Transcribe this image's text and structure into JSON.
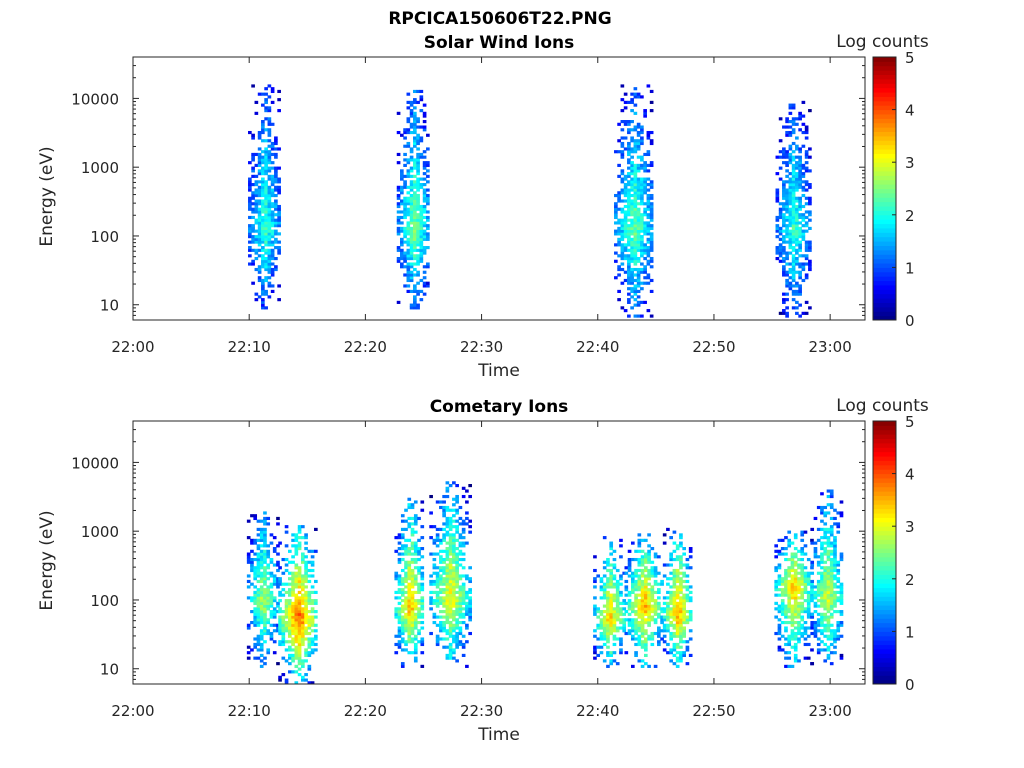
{
  "figure_title": "RPCICA150606T22.PNG",
  "chart_data": [
    {
      "type": "heatmap",
      "title": "Solar Wind Ions",
      "xlabel": "Time",
      "ylabel": "Energy (eV)",
      "x_ticks": [
        "22:00",
        "22:10",
        "22:20",
        "22:30",
        "22:40",
        "22:50",
        "23:00"
      ],
      "x_range_minutes": [
        0,
        63
      ],
      "y_scale": "log",
      "y_ticks": [
        "10",
        "100",
        "1000",
        "10000"
      ],
      "y_range": [
        6,
        40000
      ],
      "colorbar": {
        "label": "Log counts",
        "min": 0,
        "max": 5,
        "ticks": [
          "0",
          "1",
          "2",
          "3",
          "4",
          "5"
        ],
        "colormap": "jet"
      },
      "clusters": [
        {
          "t_start_min": 9.9,
          "t_end_min": 12.6,
          "e_low_eV": 8,
          "e_high_eV": 15000,
          "core_eV": 120,
          "peak_log_counts": 2.2
        },
        {
          "t_start_min": 22.7,
          "t_end_min": 25.5,
          "e_low_eV": 8,
          "e_high_eV": 13000,
          "core_eV": 120,
          "peak_log_counts": 2.5
        },
        {
          "t_start_min": 41.4,
          "t_end_min": 44.7,
          "e_low_eV": 6,
          "e_high_eV": 15000,
          "core_eV": 120,
          "peak_log_counts": 2.4
        },
        {
          "t_start_min": 55.3,
          "t_end_min": 58.2,
          "e_low_eV": 6,
          "e_high_eV": 9000,
          "core_eV": 120,
          "peak_log_counts": 2.2
        }
      ]
    },
    {
      "type": "heatmap",
      "title": "Cometary Ions",
      "xlabel": "Time",
      "ylabel": "Energy (eV)",
      "x_ticks": [
        "22:00",
        "22:10",
        "22:20",
        "22:30",
        "22:40",
        "22:50",
        "23:00"
      ],
      "x_range_minutes": [
        0,
        63
      ],
      "y_scale": "log",
      "y_ticks": [
        "10",
        "100",
        "1000",
        "10000"
      ],
      "y_range": [
        6,
        40000
      ],
      "colorbar": {
        "label": "Log counts",
        "min": 0,
        "max": 5,
        "ticks": [
          "0",
          "1",
          "2",
          "3",
          "4",
          "5"
        ],
        "colormap": "jet"
      },
      "clusters": [
        {
          "t_start_min": 9.8,
          "t_end_min": 12.4,
          "e_low_eV": 10,
          "e_high_eV": 2000,
          "core_eV": 100,
          "peak_log_counts": 2.8
        },
        {
          "t_start_min": 12.5,
          "t_end_min": 15.8,
          "e_low_eV": 6,
          "e_high_eV": 1200,
          "core_eV": 50,
          "peak_log_counts": 4.0
        },
        {
          "t_start_min": 22.5,
          "t_end_min": 25.0,
          "e_low_eV": 10,
          "e_high_eV": 3000,
          "core_eV": 70,
          "peak_log_counts": 3.5
        },
        {
          "t_start_min": 25.5,
          "t_end_min": 28.9,
          "e_low_eV": 10,
          "e_high_eV": 5000,
          "core_eV": 100,
          "peak_log_counts": 3.2
        },
        {
          "t_start_min": 39.6,
          "t_end_min": 42.3,
          "e_low_eV": 10,
          "e_high_eV": 800,
          "core_eV": 50,
          "peak_log_counts": 3.4
        },
        {
          "t_start_min": 42.3,
          "t_end_min": 45.5,
          "e_low_eV": 10,
          "e_high_eV": 1000,
          "core_eV": 80,
          "peak_log_counts": 3.6
        },
        {
          "t_start_min": 45.6,
          "t_end_min": 48.0,
          "e_low_eV": 10,
          "e_high_eV": 1200,
          "core_eV": 60,
          "peak_log_counts": 3.7
        },
        {
          "t_start_min": 55.2,
          "t_end_min": 58.3,
          "e_low_eV": 10,
          "e_high_eV": 1000,
          "core_eV": 150,
          "peak_log_counts": 3.5
        },
        {
          "t_start_min": 58.3,
          "t_end_min": 61.0,
          "e_low_eV": 10,
          "e_high_eV": 4000,
          "core_eV": 100,
          "peak_log_counts": 3.0
        }
      ]
    }
  ]
}
